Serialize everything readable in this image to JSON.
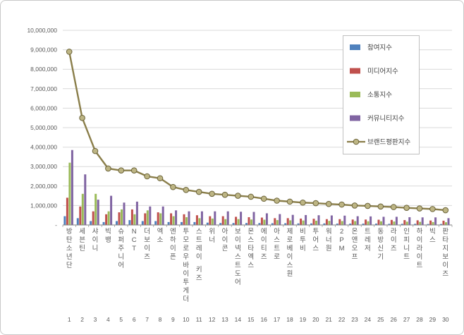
{
  "chart_data": {
    "type": "bar",
    "subtype": "grouped-bars-with-line-overlay",
    "title": "",
    "xlabel": "",
    "ylabel": "",
    "ylim": [
      0,
      10000000
    ],
    "grid": true,
    "legend_position": "upper-right-inside",
    "y_ticks": [
      0,
      1000000,
      2000000,
      3000000,
      4000000,
      5000000,
      6000000,
      7000000,
      8000000,
      9000000,
      10000000
    ],
    "y_tick_labels": [
      "-",
      "1,000,000",
      "2,000,000",
      "3,000,000",
      "4,000,000",
      "5,000,000",
      "6,000,000",
      "7,000,000",
      "8,000,000",
      "9,000,000",
      "10,000,000"
    ],
    "categories": [
      "방탄소년단",
      "세븐틴",
      "샤이니",
      "빅뱅",
      "슈퍼주니어",
      "NCT",
      "더보이즈",
      "엑소",
      "엔하이픈",
      "투모로우바이투게더",
      "스트레이 키즈",
      "위너",
      "아이콘",
      "보이넥스트도어",
      "몬스타엑스",
      "에이티즈",
      "아스트로",
      "제로베이스원",
      "비투비",
      "투어스",
      "워너원",
      "2PM",
      "온앤오프",
      "트레저",
      "동방신기",
      "라이즈",
      "인피니트",
      "하이라이트",
      "빅스",
      "판타지보이즈"
    ],
    "ranks": [
      1,
      2,
      3,
      4,
      5,
      6,
      7,
      8,
      9,
      10,
      11,
      12,
      13,
      14,
      15,
      16,
      17,
      18,
      19,
      20,
      21,
      22,
      23,
      24,
      25,
      26,
      27,
      28,
      29,
      30
    ],
    "series": [
      {
        "name": "참여지수",
        "type": "bar",
        "color": "#4F81BD",
        "values": [
          450000,
          350000,
          200000,
          150000,
          200000,
          250000,
          200000,
          200000,
          150000,
          150000,
          150000,
          120000,
          100000,
          100000,
          100000,
          100000,
          90000,
          90000,
          80000,
          80000,
          80000,
          70000,
          70000,
          70000,
          70000,
          60000,
          60000,
          60000,
          50000,
          50000
        ]
      },
      {
        "name": "미디어지수",
        "type": "bar",
        "color": "#C0504D",
        "values": [
          1400000,
          950000,
          700000,
          550000,
          650000,
          800000,
          600000,
          650000,
          600000,
          550000,
          500000,
          450000,
          450000,
          420000,
          400000,
          380000,
          350000,
          350000,
          330000,
          320000,
          300000,
          300000,
          280000,
          280000,
          270000,
          260000,
          250000,
          240000,
          230000,
          220000
        ]
      },
      {
        "name": "소통지수",
        "type": "bar",
        "color": "#9BBB59",
        "values": [
          3200000,
          1600000,
          1600000,
          700000,
          800000,
          550000,
          750000,
          600000,
          450000,
          400000,
          350000,
          330000,
          300000,
          300000,
          280000,
          270000,
          250000,
          240000,
          230000,
          220000,
          210000,
          200000,
          200000,
          190000,
          190000,
          180000,
          170000,
          160000,
          150000,
          140000
        ]
      },
      {
        "name": "커뮤니티지수",
        "type": "bar",
        "color": "#8064A2",
        "values": [
          3850000,
          2600000,
          1300000,
          1500000,
          1150000,
          1200000,
          950000,
          950000,
          750000,
          700000,
          700000,
          700000,
          700000,
          680000,
          670000,
          600000,
          560000,
          520000,
          510000,
          500000,
          490000,
          480000,
          450000,
          440000,
          420000,
          420000,
          400000,
          390000,
          390000,
          350000
        ]
      },
      {
        "name": "브랜드평판지수",
        "type": "line",
        "color": "#8A7E4A",
        "marker_fill": "#BDB584",
        "marker_stroke": "#6B6339",
        "values": [
          8900000,
          5500000,
          3800000,
          2900000,
          2800000,
          2800000,
          2500000,
          2400000,
          1950000,
          1800000,
          1700000,
          1600000,
          1550000,
          1500000,
          1450000,
          1350000,
          1250000,
          1200000,
          1150000,
          1120000,
          1080000,
          1050000,
          1000000,
          980000,
          950000,
          920000,
          880000,
          850000,
          820000,
          760000
        ]
      }
    ]
  },
  "colors": {
    "gridline": "#D9D9D9",
    "axis_text": "#595959",
    "axis_line": "#808080",
    "legend_border": "#BFBFBF",
    "card_border": "#C9C9C9"
  }
}
